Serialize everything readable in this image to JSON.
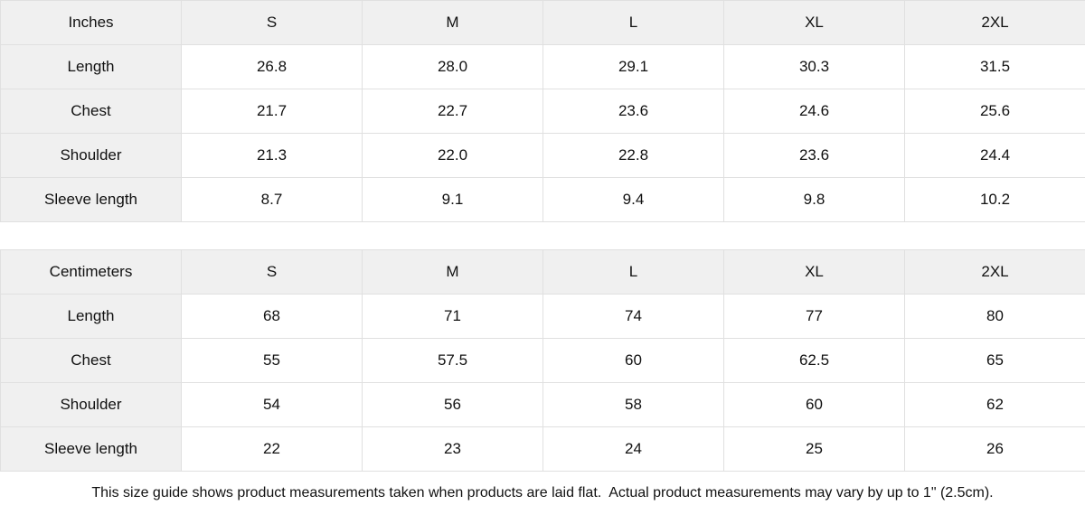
{
  "tables": [
    {
      "unit_label": "Inches",
      "sizes": [
        "S",
        "M",
        "L",
        "XL",
        "2XL"
      ],
      "rows": [
        {
          "label": "Length",
          "values": [
            "26.8",
            "28.0",
            "29.1",
            "30.3",
            "31.5"
          ]
        },
        {
          "label": "Chest",
          "values": [
            "21.7",
            "22.7",
            "23.6",
            "24.6",
            "25.6"
          ]
        },
        {
          "label": "Shoulder",
          "values": [
            "21.3",
            "22.0",
            "22.8",
            "23.6",
            "24.4"
          ]
        },
        {
          "label": "Sleeve length",
          "values": [
            "8.7",
            "9.1",
            "9.4",
            "9.8",
            "10.2"
          ]
        }
      ]
    },
    {
      "unit_label": "Centimeters",
      "sizes": [
        "S",
        "M",
        "L",
        "XL",
        "2XL"
      ],
      "rows": [
        {
          "label": "Length",
          "values": [
            "68",
            "71",
            "74",
            "77",
            "80"
          ]
        },
        {
          "label": "Chest",
          "values": [
            "55",
            "57.5",
            "60",
            "62.5",
            "65"
          ]
        },
        {
          "label": "Shoulder",
          "values": [
            "54",
            "56",
            "58",
            "60",
            "62"
          ]
        },
        {
          "label": "Sleeve length",
          "values": [
            "22",
            "23",
            "24",
            "25",
            "26"
          ]
        }
      ]
    }
  ],
  "footer": {
    "note": "This size guide shows product measurements taken when products are laid flat.  Actual product measurements may vary by up to 1\" (2.5cm)."
  },
  "colors": {
    "header_bg": "#f0f0f0",
    "border": "#e0e0e0",
    "text": "#111111",
    "background": "#ffffff"
  }
}
